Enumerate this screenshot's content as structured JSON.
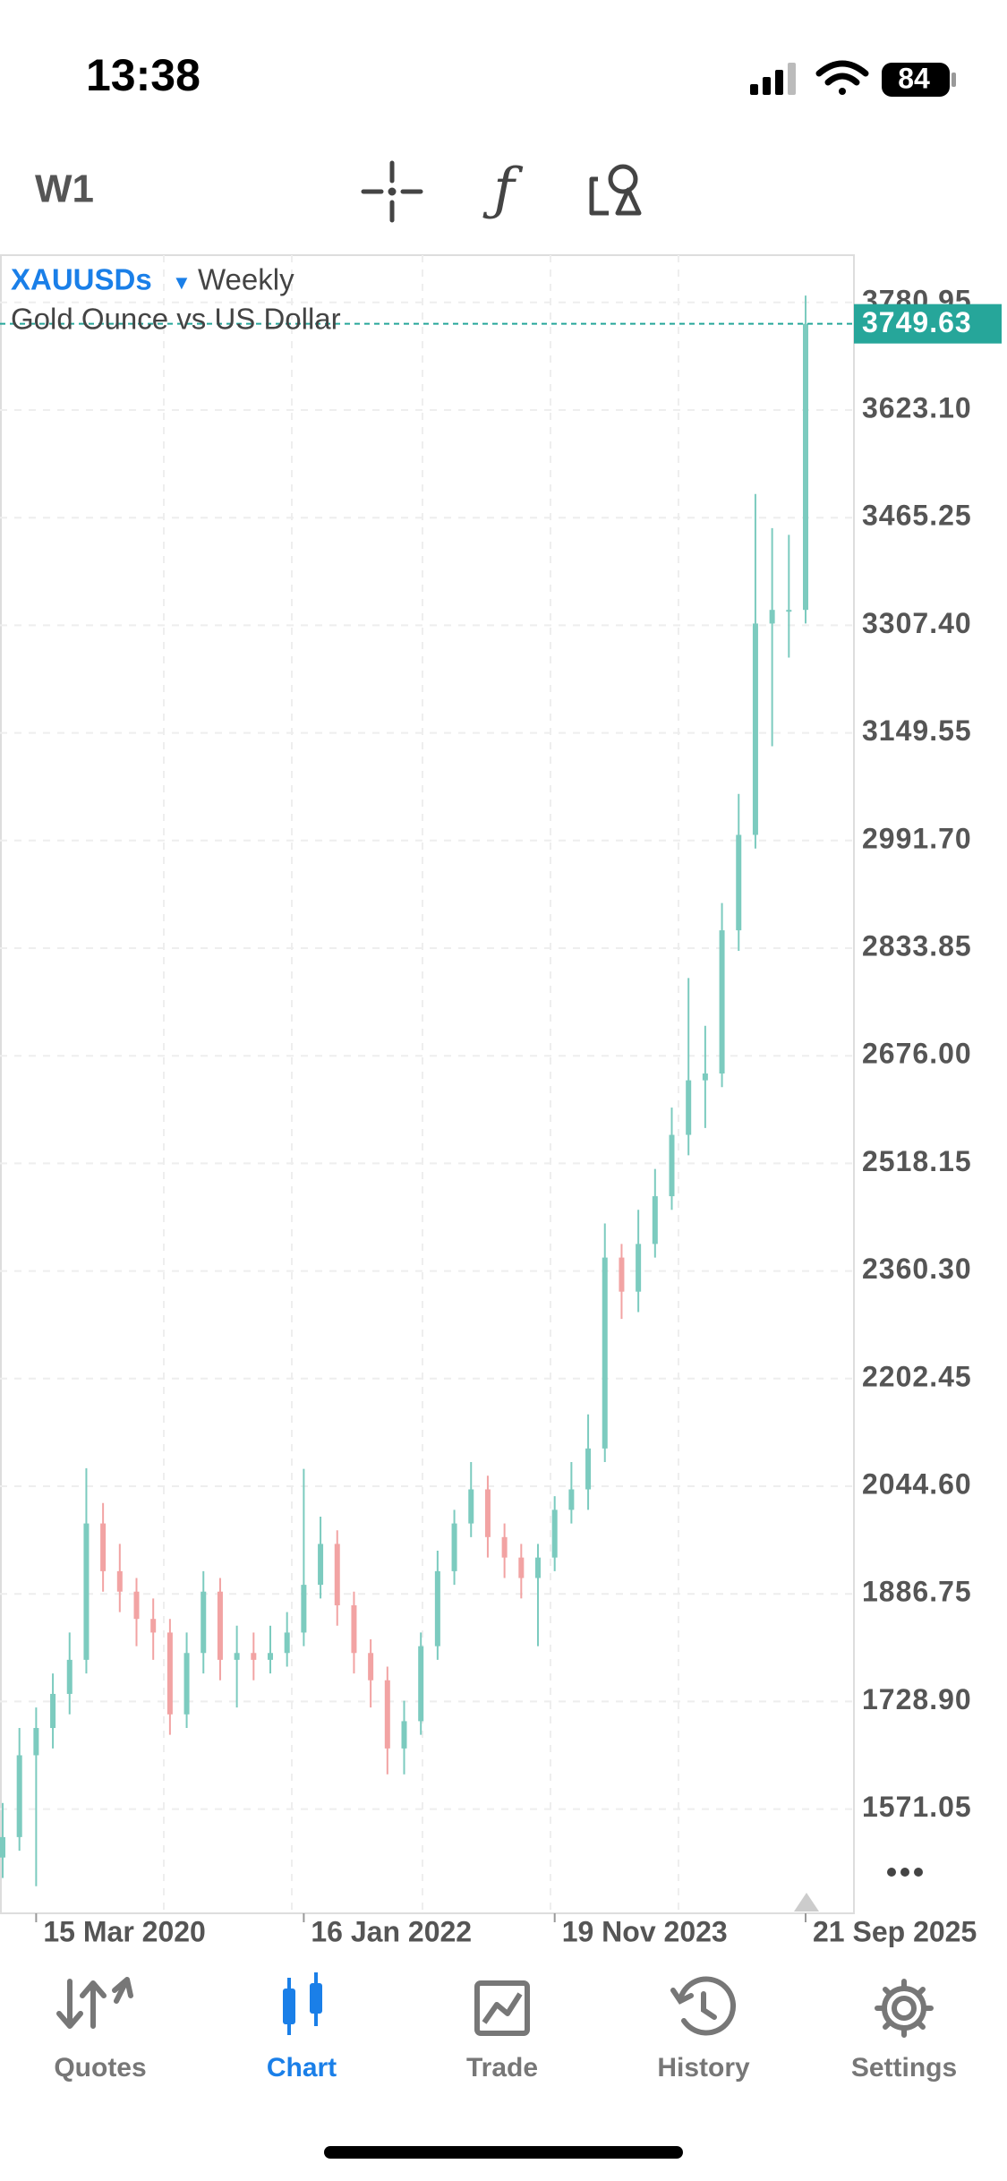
{
  "status_bar": {
    "time": "13:38",
    "battery": "84"
  },
  "toolbar": {
    "timeframe": "W1"
  },
  "chart_data": {
    "type": "candlestick",
    "symbol": "XAUUSDs",
    "period": "Weekly",
    "title": "Gold Ounce vs US Dollar",
    "categories": [
      null,
      null,
      "15 Mar 2020",
      null,
      null,
      null,
      null,
      null,
      null,
      null,
      null,
      null,
      null,
      null,
      null,
      null,
      null,
      null,
      "16 Jan 2022",
      null,
      null,
      null,
      null,
      null,
      null,
      null,
      null,
      null,
      null,
      null,
      null,
      null,
      null,
      "19 Nov 2023",
      null,
      null,
      null,
      null,
      null,
      null,
      null,
      null,
      null,
      null,
      null,
      null,
      null,
      null,
      "21 Sep 2025"
    ],
    "open": [
      1500,
      1530,
      1650,
      1690,
      1740,
      1790,
      1990,
      1920,
      1890,
      1850,
      1830,
      1710,
      1800,
      1890,
      1790,
      1800,
      1790,
      1800,
      1830,
      1900,
      1960,
      1870,
      1800,
      1760,
      1660,
      1700,
      1810,
      1920,
      1990,
      2040,
      1970,
      1940,
      1910,
      1940,
      2010,
      2040,
      2100,
      2380,
      2330,
      2400,
      2470,
      2560,
      2640,
      2650,
      2860,
      3000,
      3310,
      3330,
      3330
    ],
    "high": [
      1580,
      1690,
      1720,
      1770,
      1830,
      2071,
      2020,
      1960,
      1910,
      1880,
      1850,
      1830,
      1920,
      1910,
      1840,
      1830,
      1840,
      1860,
      2070,
      2000,
      1980,
      1890,
      1820,
      1780,
      1730,
      1830,
      1950,
      2010,
      2080,
      2060,
      1990,
      1960,
      1960,
      2030,
      2080,
      2150,
      2430,
      2400,
      2450,
      2510,
      2600,
      2790,
      2720,
      2900,
      3060,
      3500,
      3450,
      3440,
      3791
    ],
    "low": [
      1470,
      1510,
      1458,
      1660,
      1710,
      1770,
      1890,
      1860,
      1810,
      1790,
      1680,
      1690,
      1770,
      1760,
      1720,
      1760,
      1770,
      1780,
      1810,
      1880,
      1840,
      1770,
      1720,
      1622,
      1622,
      1680,
      1790,
      1900,
      1970,
      1940,
      1910,
      1880,
      1810,
      1920,
      1990,
      2010,
      2080,
      2290,
      2300,
      2380,
      2450,
      2530,
      2570,
      2630,
      2830,
      2980,
      3130,
      3260,
      3310
    ],
    "close": [
      1530,
      1650,
      1690,
      1740,
      1790,
      1990,
      1920,
      1890,
      1850,
      1830,
      1710,
      1800,
      1890,
      1790,
      1800,
      1790,
      1800,
      1830,
      1900,
      1960,
      1870,
      1800,
      1760,
      1660,
      1700,
      1810,
      1920,
      1990,
      2040,
      1970,
      1940,
      1910,
      1940,
      2010,
      2040,
      2100,
      2380,
      2330,
      2400,
      2470,
      2560,
      2640,
      2650,
      2860,
      3000,
      3310,
      3330,
      3330,
      3749.63
    ],
    "up_color": "#7ccbbf",
    "down_color": "#f2a3a3",
    "last_price": 3749.63,
    "last_price_color": "#26a69a",
    "ylim": [
      1418.2,
      3850.3
    ],
    "yticks": [
      {
        "value": 1571.05,
        "label": "1571.05"
      },
      {
        "value": 1728.9,
        "label": "1728.90"
      },
      1886.75,
      {
        "value": 2044.6,
        "label": "2044.60"
      },
      2202.45,
      {
        "value": 2360.3,
        "label": "2360.30"
      },
      2518.15,
      {
        "value": 2676.0,
        "label": "2676.00"
      },
      2833.85,
      {
        "value": 2991.7,
        "label": "2991.70"
      },
      3149.55,
      {
        "value": 3307.4,
        "label": "3307.40"
      },
      3465.25,
      {
        "value": 3623.1,
        "label": "3623.10"
      },
      3780.95
    ],
    "grid": true
  },
  "tab_bar": {
    "tabs": [
      "Quotes",
      "Chart",
      "Trade",
      "History",
      "Settings"
    ],
    "active": 1
  }
}
